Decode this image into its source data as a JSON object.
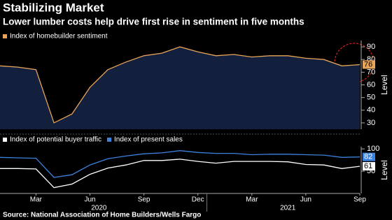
{
  "title": "Stabilizing Market",
  "subtitle": "Lower lumber costs help drive first rise in sentiment in five months",
  "source": "Source: National Association of Home Builders/Wells Fargo",
  "chart_data": [
    {
      "type": "area",
      "series": [
        {
          "name": "Index of homebuilder sentiment",
          "color": "#e8a458",
          "values": [
            75,
            74,
            72,
            30,
            37,
            58,
            72,
            78,
            83,
            85,
            90,
            86,
            83,
            84,
            82,
            83,
            83,
            81,
            80,
            75,
            76
          ]
        }
      ],
      "last_value_label": 76,
      "ylim": [
        25,
        95
      ],
      "yticks": [
        30,
        40,
        50,
        60,
        70,
        80,
        90
      ],
      "y_label": "Level"
    },
    {
      "type": "line",
      "categories": [
        null,
        null,
        "Mar",
        null,
        null,
        "Jun",
        null,
        null,
        "Sep",
        null,
        null,
        "Dec",
        null,
        null,
        "Mar",
        null,
        null,
        "Jun",
        null,
        null,
        "Sep"
      ],
      "x_groups": [
        "2020",
        "2021"
      ],
      "series": [
        {
          "name": "Index of potential buyer traffic",
          "color": "#ffffff",
          "values": [
            56,
            56,
            55,
            13,
            21,
            43,
            57,
            64,
            74,
            74,
            77,
            72,
            68,
            72,
            72,
            72,
            71,
            65,
            64,
            56,
            61
          ]
        },
        {
          "name": "Index of present sales",
          "color": "#3b82e0",
          "values": [
            81,
            80,
            79,
            36,
            42,
            64,
            78,
            84,
            89,
            91,
            96,
            92,
            90,
            90,
            87,
            88,
            88,
            87,
            86,
            81,
            82
          ]
        }
      ],
      "ylim": [
        0,
        105
      ],
      "yticks": [
        50,
        100
      ],
      "y_label": "Level"
    }
  ]
}
